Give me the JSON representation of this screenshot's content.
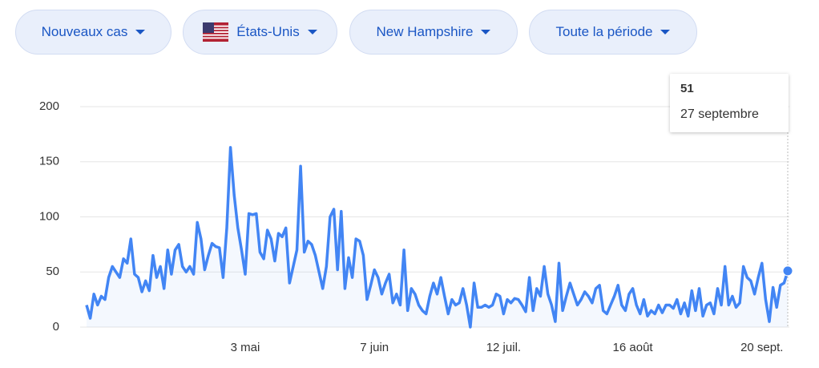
{
  "filters": [
    "Nouveaux cas",
    "États-Unis",
    "New Hampshire",
    "Toute la période"
  ],
  "chart_data": {
    "type": "line",
    "categories": [
      null,
      null,
      null,
      null,
      null,
      null,
      null,
      null,
      null,
      null,
      null,
      null,
      null,
      null,
      null,
      null,
      null,
      null,
      null,
      null,
      null,
      null,
      null,
      null,
      null,
      null,
      null,
      null,
      null,
      null,
      null,
      null,
      null,
      null,
      null,
      null,
      null,
      null,
      null,
      null,
      null,
      null,
      null,
      "3 mai",
      null,
      null,
      null,
      null,
      null,
      null,
      null,
      null,
      null,
      null,
      null,
      null,
      null,
      null,
      null,
      null,
      null,
      null,
      null,
      null,
      null,
      null,
      null,
      null,
      null,
      null,
      null,
      null,
      null,
      null,
      null,
      null,
      null,
      null,
      "7 juin",
      null,
      null,
      null,
      null,
      null,
      null,
      null,
      null,
      null,
      null,
      null,
      null,
      null,
      null,
      null,
      null,
      null,
      null,
      null,
      null,
      null,
      null,
      null,
      null,
      null,
      null,
      null,
      null,
      null,
      null,
      null,
      null,
      null,
      null,
      "12 juil.",
      null,
      null,
      null,
      null,
      null,
      null,
      null,
      null,
      null,
      null,
      null,
      null,
      null,
      null,
      null,
      null,
      null,
      null,
      null,
      null,
      null,
      null,
      null,
      null,
      null,
      null,
      null,
      null,
      null,
      null,
      null,
      null,
      null,
      null,
      "16 août",
      null,
      null,
      null,
      null,
      null,
      null,
      null,
      null,
      null,
      null,
      null,
      null,
      null,
      null,
      null,
      null,
      null,
      null,
      null,
      null,
      null,
      null,
      null,
      null,
      null,
      null,
      null,
      null,
      null,
      null,
      null,
      null,
      null,
      null,
      "20 sept.",
      null,
      null,
      null,
      null,
      null,
      null,
      null
    ],
    "series": [
      {
        "color": "#4285f4",
        "values": [
          20,
          8,
          30,
          20,
          28,
          25,
          45,
          55,
          50,
          45,
          62,
          58,
          80,
          48,
          45,
          32,
          42,
          33,
          65,
          45,
          55,
          35,
          70,
          48,
          70,
          75,
          55,
          50,
          55,
          48,
          95,
          80,
          52,
          65,
          76,
          73,
          72,
          45,
          90,
          163,
          120,
          90,
          70,
          48,
          103,
          102,
          103,
          68,
          62,
          88,
          80,
          60,
          85,
          82,
          90,
          40,
          55,
          70,
          146,
          68,
          78,
          75,
          65,
          50,
          35,
          55,
          100,
          107,
          52,
          105,
          35,
          63,
          45,
          80,
          78,
          65,
          25,
          38,
          52,
          45,
          30,
          40,
          48,
          22,
          30,
          20,
          70,
          15,
          35,
          30,
          20,
          15,
          12,
          28,
          40,
          30,
          45,
          28,
          12,
          25,
          20,
          22,
          35,
          20,
          0,
          40,
          18,
          18,
          20,
          18,
          20,
          30,
          28,
          12,
          25,
          22,
          26,
          25,
          20,
          14,
          45,
          15,
          35,
          28,
          55,
          30,
          20,
          5,
          58,
          15,
          28,
          40,
          30,
          20,
          25,
          32,
          28,
          22,
          35,
          38,
          15,
          12,
          20,
          28,
          38,
          20,
          15,
          30,
          35,
          20,
          12,
          25,
          10,
          15,
          12,
          20,
          13,
          20,
          20,
          17,
          25,
          12,
          22,
          10,
          33,
          15,
          35,
          10,
          20,
          22,
          12,
          35,
          20,
          55,
          20,
          28,
          18,
          22,
          55,
          45,
          42,
          30,
          45,
          58,
          25,
          5,
          36,
          18,
          38,
          40,
          51
        ]
      }
    ],
    "ylim": [
      0,
      200
    ],
    "yticks": [
      0,
      50,
      100,
      150,
      200
    ],
    "grid": true,
    "tooltip": {
      "date": "27 septembre"
    }
  }
}
